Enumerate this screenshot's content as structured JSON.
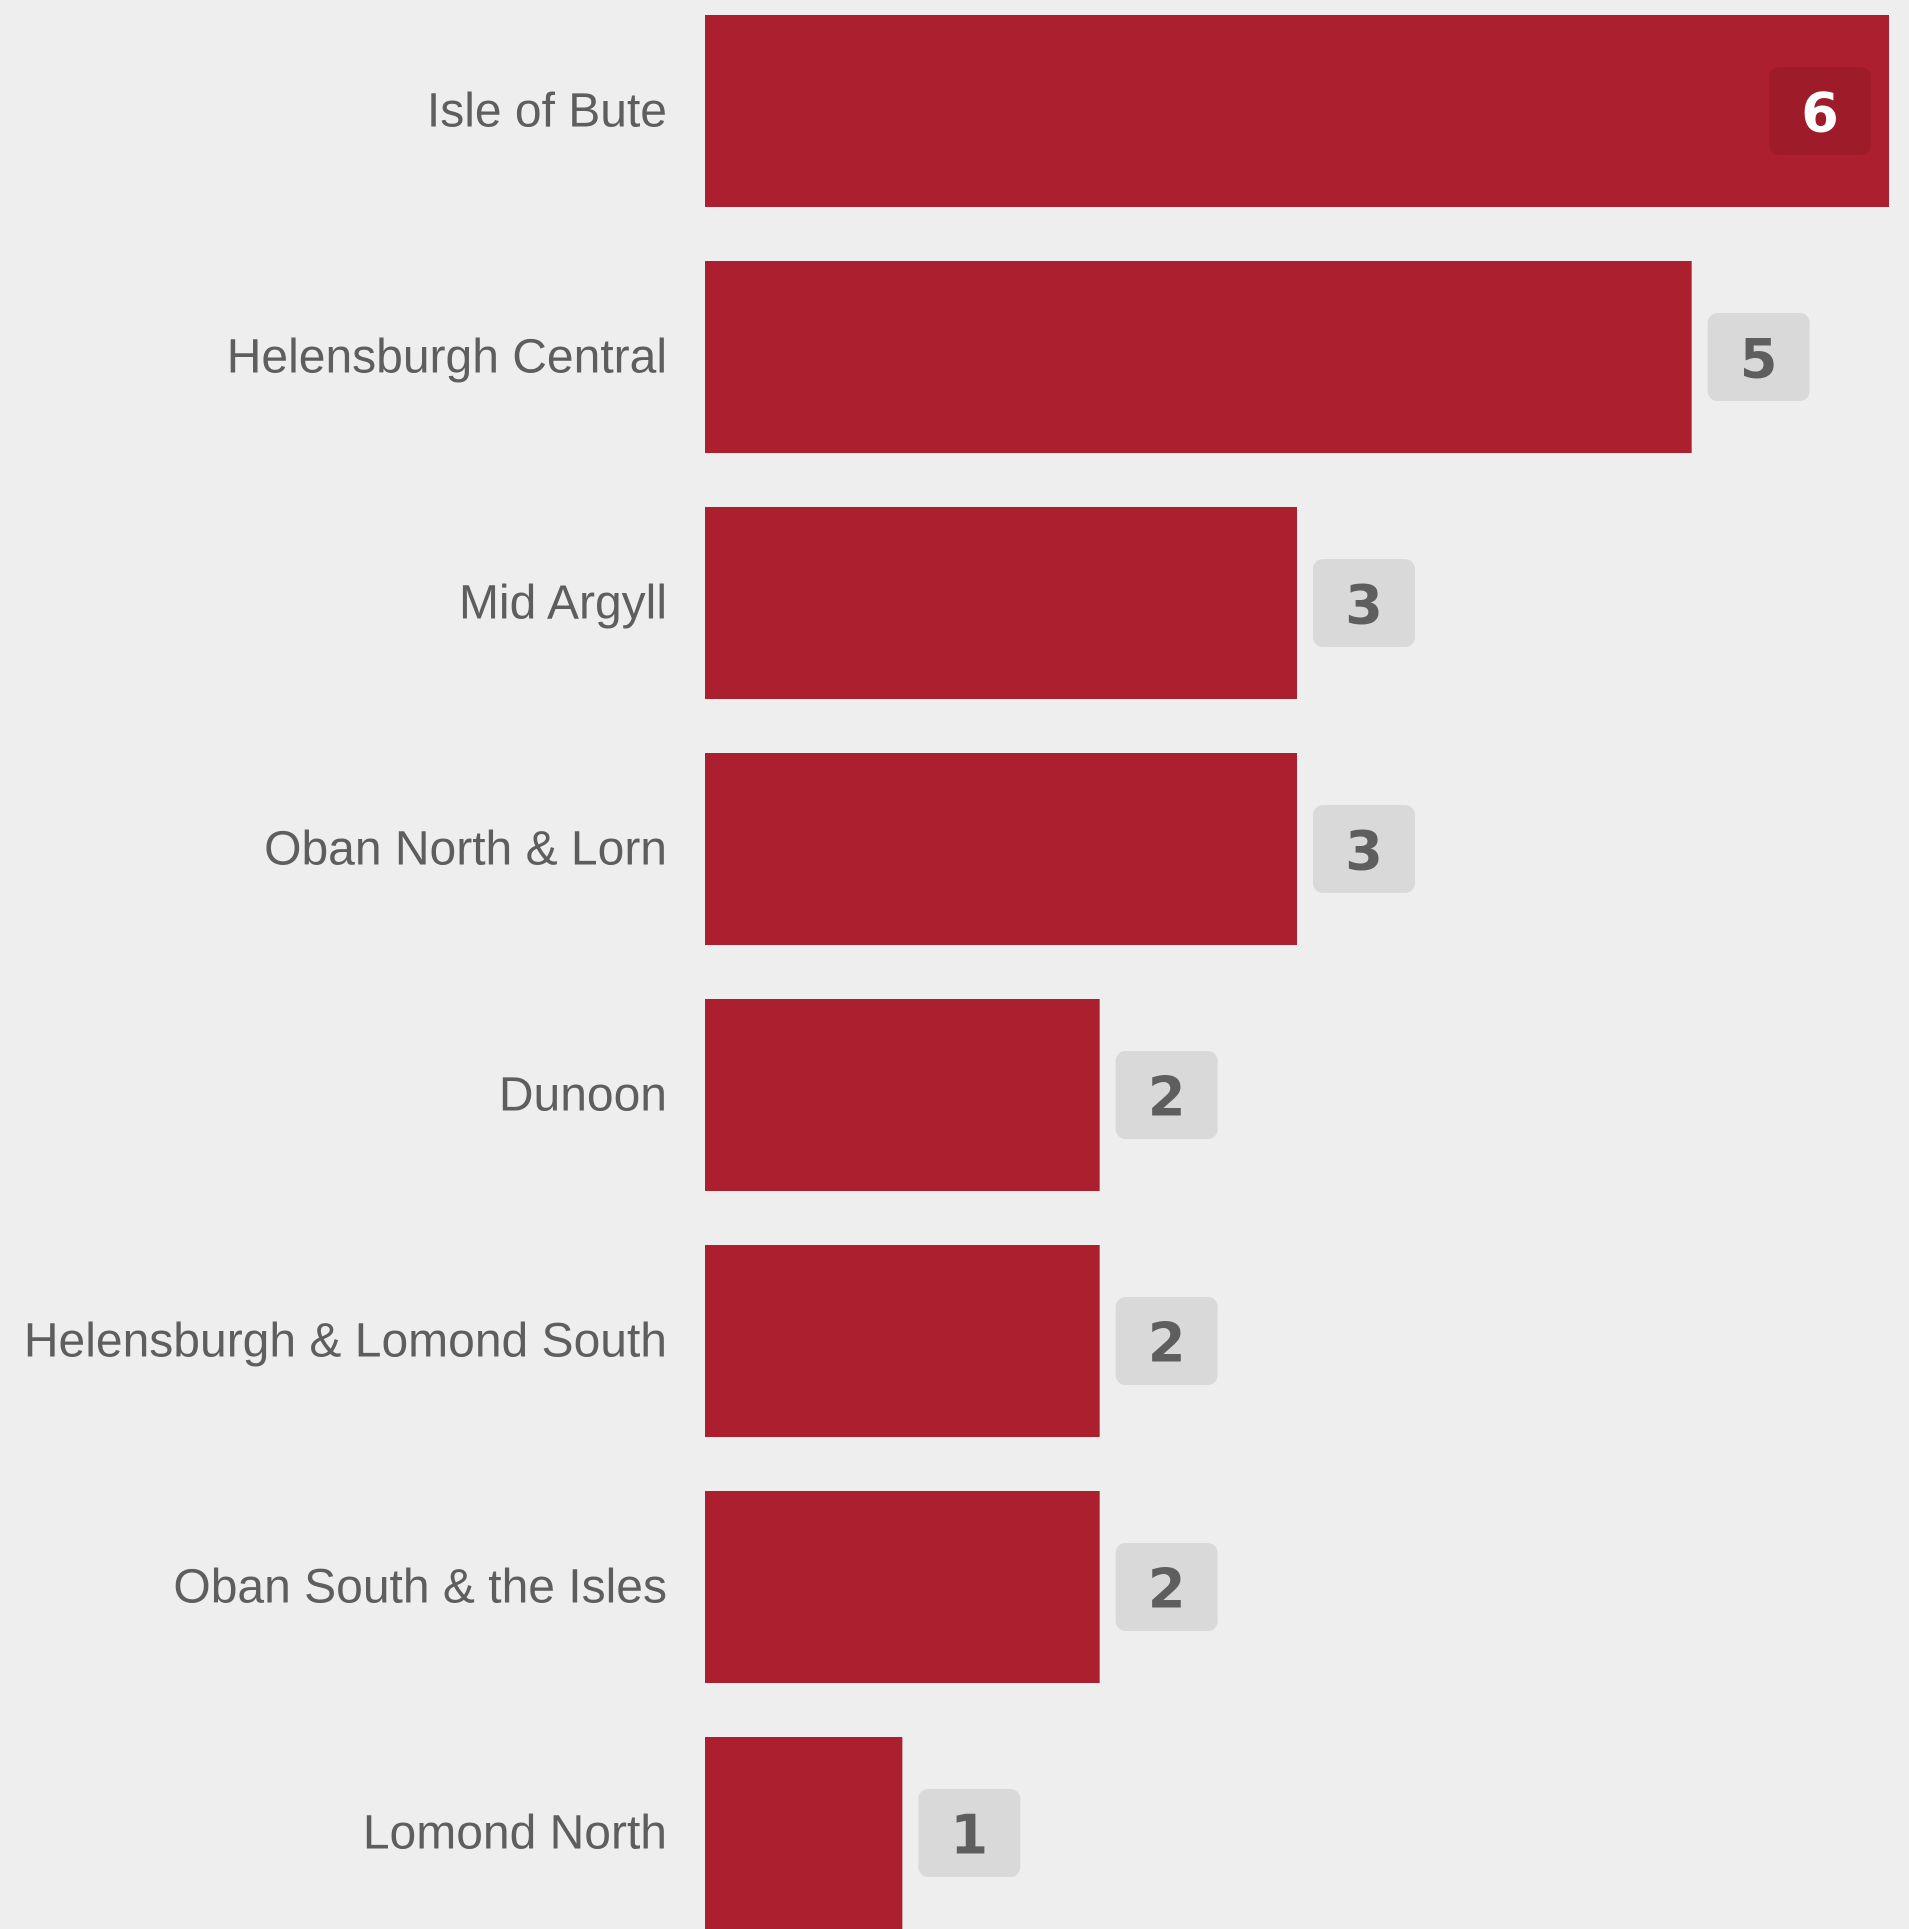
{
  "colors": {
    "background": "#eeeeee",
    "bar": "#ab1f2e",
    "label_text": "#5e5e5e",
    "badge_bg": "#d9d9d9",
    "badge_text": "#5e5e5e",
    "badge_inside_bg": "#9e1c2a",
    "badge_inside_text": "#ffffff"
  },
  "chart_data": {
    "type": "bar",
    "orientation": "horizontal",
    "categories": [
      "Isle of Bute",
      "Helensburgh Central",
      "Mid Argyll",
      "Oban North & Lorn",
      "Dunoon",
      "Helensburgh & Lomond South",
      "Oban South & the Isles",
      "Lomond North"
    ],
    "values": [
      6,
      5,
      3,
      3,
      2,
      2,
      2,
      1
    ],
    "value_labels": [
      "6",
      "5",
      "3",
      "3",
      "2",
      "2",
      "2",
      "1"
    ],
    "xlim": [
      0,
      6
    ],
    "grid": false,
    "legend": "none"
  }
}
